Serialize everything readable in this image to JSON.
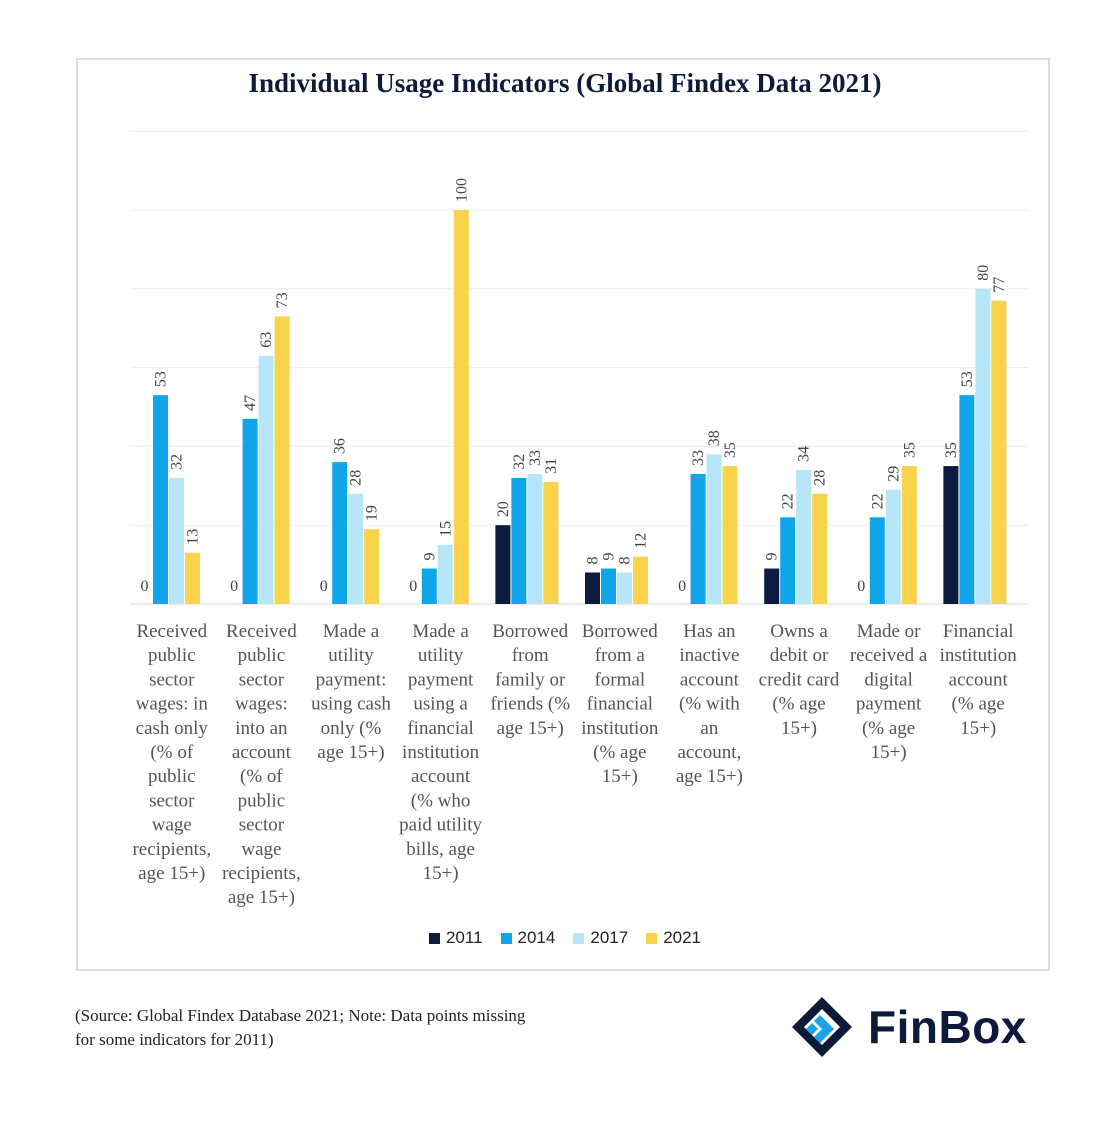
{
  "title": "Individual Usage Indicators (Global Findex Data 2021)",
  "source_note": "(Source: Global Findex Database 2021; Note: Data points missing for some indicators for 2011)",
  "logo": {
    "name": "FinBox",
    "icon": "finbox-logo-icon"
  },
  "colors": {
    "2011": "#0b1a3e",
    "2014": "#0ea5e9",
    "2017": "#b8e6f9",
    "2021": "#f9d34b"
  },
  "chart_data": {
    "type": "bar",
    "title": "Individual Usage Indicators (Global Findex Data 2021)",
    "ylim": [
      0,
      120
    ],
    "grid": true,
    "legend_position": "bottom",
    "categories": [
      "Received public sector wages: in cash only (% of public sector wage recipients, age 15+)",
      "Received public sector wages: into an account (% of public sector wage recipients, age 15+)",
      "Made a utility payment: using cash only (% age 15+)",
      "Made a utility payment using a financial institution account (% who paid utility bills, age 15+)",
      "Borrowed from family or friends (% age 15+)",
      "Borrowed from a formal financial institution (% age 15+)",
      "Has an inactive account (% with an account, age 15+)",
      "Owns a debit or credit card (% age 15+)",
      "Made or received a digital payment (% age 15+)",
      "Financial institution account (% age 15+)"
    ],
    "category_lines": [
      [
        "Received",
        "public",
        "sector",
        "wages: in",
        "cash only",
        "(% of",
        "public",
        "sector",
        "wage",
        "recipients,",
        "age 15+)"
      ],
      [
        "Received",
        "public",
        "sector",
        "wages:",
        "into an",
        "account",
        "(% of",
        "public",
        "sector",
        "wage",
        "recipients,",
        "age 15+)"
      ],
      [
        "Made a",
        "utility",
        "payment:",
        "using cash",
        "only (%",
        "age 15+)"
      ],
      [
        "Made a",
        "utility",
        "payment",
        "using a",
        "financial",
        "institution",
        "account",
        "(% who",
        "paid utility",
        "bills, age",
        "15+)"
      ],
      [
        "Borrowed",
        "from",
        "family or",
        "friends (%",
        "age 15+)"
      ],
      [
        "Borrowed",
        "from a",
        "formal",
        "financial",
        "institution",
        "(% age",
        "15+)"
      ],
      [
        "Has an",
        "inactive",
        "account",
        "(% with",
        "an",
        "account,",
        "age 15+)"
      ],
      [
        "Owns a",
        "debit or",
        "credit card",
        "(% age",
        "15+)"
      ],
      [
        "Made or",
        "received a",
        "digital",
        "payment",
        "(% age",
        "15+)"
      ],
      [
        "Financial",
        "institution",
        "account",
        "(% age",
        "15+)"
      ]
    ],
    "series": [
      {
        "name": "2011",
        "values": [
          0,
          0,
          0,
          0,
          20,
          8,
          0,
          9,
          0,
          35
        ],
        "labels": [
          "0",
          "0",
          "0",
          "0",
          "20",
          "8",
          "0",
          "9",
          "0",
          "35"
        ]
      },
      {
        "name": "2014",
        "values": [
          53,
          47,
          36,
          9,
          32,
          9,
          33,
          22,
          22,
          53
        ],
        "labels": [
          "53",
          "47",
          "36",
          "9",
          "32",
          "9",
          "33",
          "22",
          "22",
          "53"
        ]
      },
      {
        "name": "2017",
        "values": [
          32,
          63,
          28,
          15,
          33,
          8,
          38,
          34,
          29,
          80
        ],
        "labels": [
          "32",
          "63",
          "28",
          "15",
          "33",
          "8",
          "38",
          "34",
          "29",
          "80"
        ]
      },
      {
        "name": "2021",
        "values": [
          13,
          73,
          19,
          100,
          31,
          12,
          35,
          28,
          35,
          77
        ],
        "labels": [
          "13",
          "73",
          "19",
          "100",
          "31",
          "12",
          "35",
          "28",
          "35",
          "77"
        ]
      }
    ]
  }
}
